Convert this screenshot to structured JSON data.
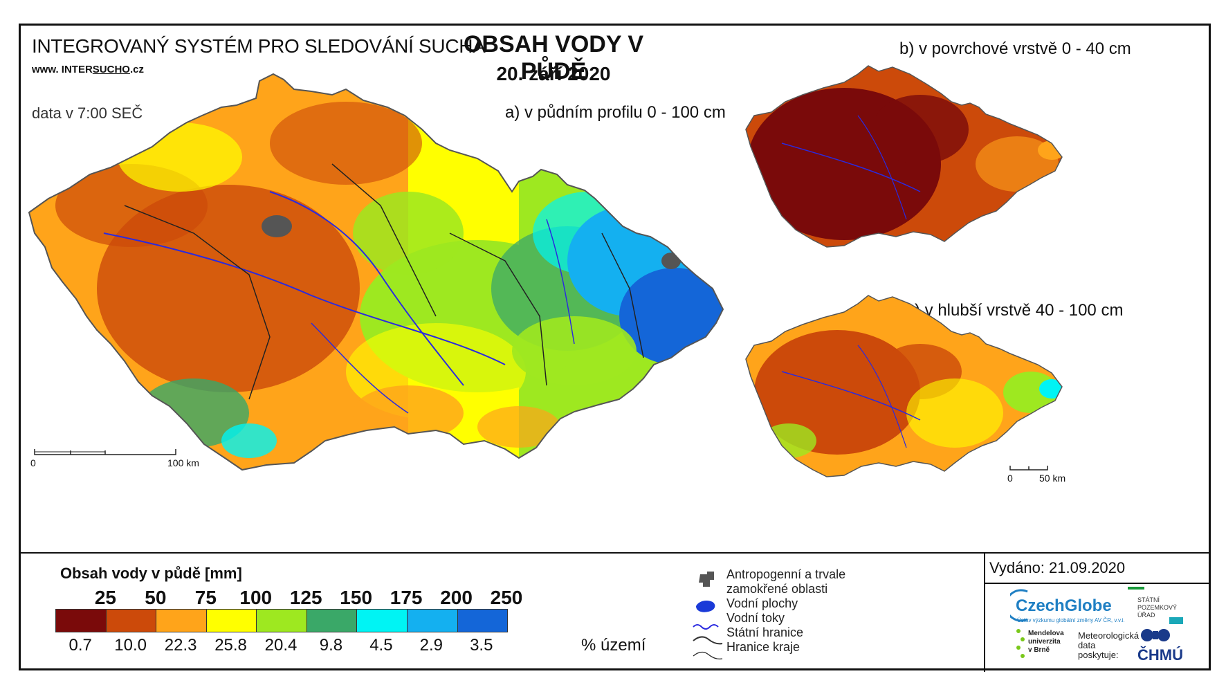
{
  "header": {
    "system_title": "INTEGROVANÝ SYSTÉM PRO SLEDOVÁNÍ SUCHA",
    "website_prefix": "www. INTER",
    "website_underlined": "SUCHO",
    "website_suffix": ".cz",
    "data_time": "data v 7:00 SEČ",
    "main_title": "OBSAH VODY V PŮDĚ",
    "date": "20. září 2020"
  },
  "maps": {
    "a_label": "a) v půdním profilu 0 - 100 cm",
    "b_label": "b) v povrchové vrstvě 0 - 40 cm",
    "c_label": "c) v hlubší vrstvě 40 - 100 cm"
  },
  "scales": {
    "main_zero": "0",
    "main_end": "100 km",
    "small_zero": "0",
    "small_end": "50 km"
  },
  "legend": {
    "title": "Obsah vody v půdě  [mm]",
    "thresholds": [
      "25",
      "50",
      "75",
      "100",
      "125",
      "150",
      "175",
      "200",
      "250"
    ],
    "colors": [
      "#7a0a0a",
      "#cc4a0a",
      "#ffa41a",
      "#ffff00",
      "#9ee820",
      "#3aa868",
      "#00f4f4",
      "#14b0f0",
      "#1466d8"
    ],
    "percentages": [
      "0.7",
      "10.0",
      "22.3",
      "25.8",
      "20.4",
      "9.8",
      "4.5",
      "2.9",
      "3.5"
    ],
    "percent_unit": "% území"
  },
  "symbols": {
    "anthropogenic_line1": "Antropogenní a trvale",
    "anthropogenic_line2": "zamokřené oblasti",
    "water_bodies": "Vodní plochy",
    "rivers": "Vodní toky",
    "state_border": "Státní hranice",
    "region_border": "Hranice kraje"
  },
  "issued": "Vydáno: 21.09.2020",
  "logos": {
    "czechglobe": "CzechGlobe",
    "czechglobe_sub": "Ústav výzkumu globální změny AV ČR, v.v.i.",
    "spu_line1": "STÁTNÍ",
    "spu_line2": "POZEMKOVÝ",
    "spu_line3": "ÚŘAD",
    "mendel_line1": "Mendelova",
    "mendel_line2": "univerzita",
    "mendel_line3": "v Brně",
    "meteo_line1": "Meteorologická",
    "meteo_line2": "data",
    "meteo_line3": "poskytuje:",
    "chmu": "ČHMÚ"
  }
}
